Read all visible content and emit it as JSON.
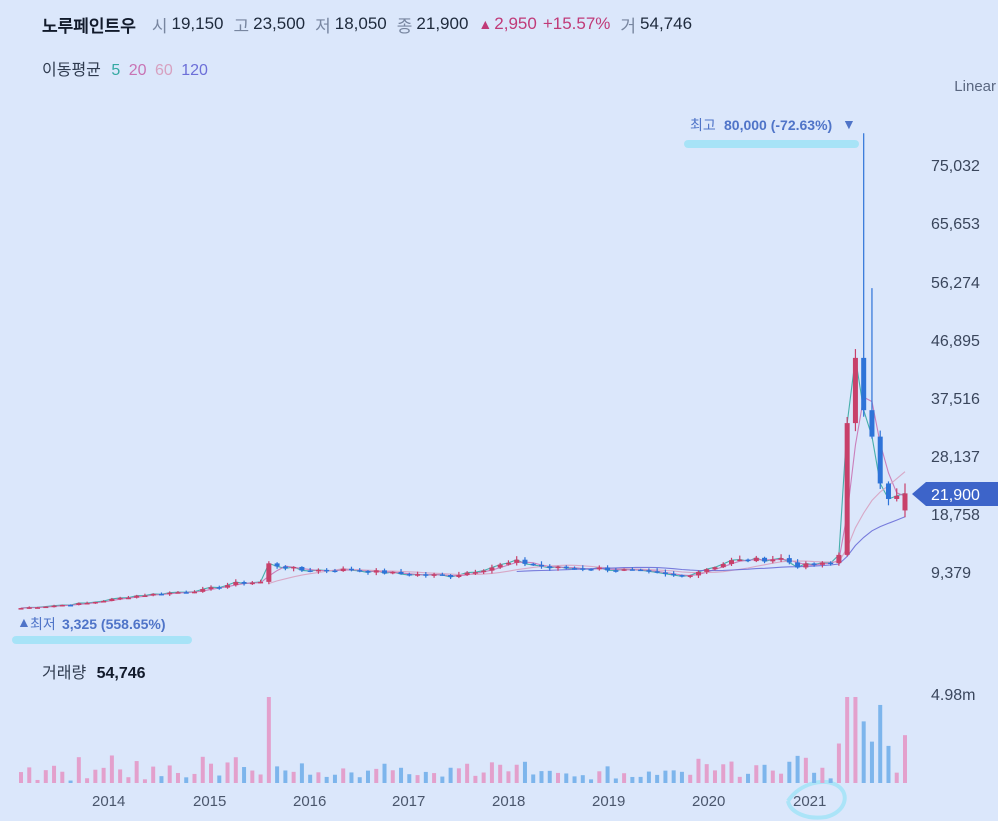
{
  "header": {
    "stock_name": "노루페인트우",
    "open_label": "시",
    "open_value": "19,150",
    "high_label": "고",
    "high_value": "23,500",
    "low_label": "저",
    "low_value": "18,050",
    "close_label": "종",
    "close_value": "21,900",
    "change_arrow": "▲",
    "change_value": "2,950",
    "change_percent": "+15.57%",
    "volume_label": "거",
    "volume_value": "54,746"
  },
  "moving_average": {
    "label": "이동평균",
    "periods": [
      "5",
      "20",
      "60",
      "120"
    ],
    "colors": [
      "#35a9a2",
      "#c873b4",
      "#d7a1c0",
      "#6c6fd8"
    ]
  },
  "scale_mode": "Linear",
  "colors": {
    "up": "#c8406a",
    "down": "#2e73d8",
    "vol_up": "#e3a0cc",
    "vol_down": "#7db5ec",
    "accent": "#4f74c8",
    "price_tag": "#3d64c9"
  },
  "chart_data": [
    {
      "type": "candlestick",
      "y_axis_ticks": [
        "75,032",
        "65,653",
        "56,274",
        "46,895",
        "37,516",
        "28,137",
        "18,758",
        "9,379"
      ],
      "x_axis_ticks": [
        "2014",
        "2015",
        "2016",
        "2017",
        "2018",
        "2019",
        "2020",
        "2021"
      ],
      "current_price_label": "21,900",
      "max_annotation": {
        "label": "최고",
        "value": "80,000 (-72.63%)",
        "marker": "▼"
      },
      "min_annotation": {
        "label": "최저",
        "value": "3,325 (558.65%)",
        "marker": "▲"
      },
      "approx_close_by_month": [
        {
          "x": "2013-02",
          "close": 3400
        },
        {
          "x": "2014-01",
          "close": 4500
        },
        {
          "x": "2015-01",
          "close": 6000
        },
        {
          "x": "2015-07",
          "close": 10500
        },
        {
          "x": "2016-01",
          "close": 9000
        },
        {
          "x": "2017-01",
          "close": 8000
        },
        {
          "x": "2018-01",
          "close": 10000
        },
        {
          "x": "2019-01",
          "close": 8500
        },
        {
          "x": "2020-01",
          "close": 11000
        },
        {
          "x": "2021-01",
          "close": 10500
        },
        {
          "x": "2021-03",
          "close": 34000
        },
        {
          "x": "2021-04",
          "close": 43000
        },
        {
          "x": "2021-06",
          "close": 30000
        },
        {
          "x": "2021-09",
          "close": 21900
        }
      ]
    },
    {
      "type": "bar",
      "title": "거래량",
      "title_value": "54,746",
      "y_axis_ticks": [
        "4.98m"
      ]
    }
  ]
}
